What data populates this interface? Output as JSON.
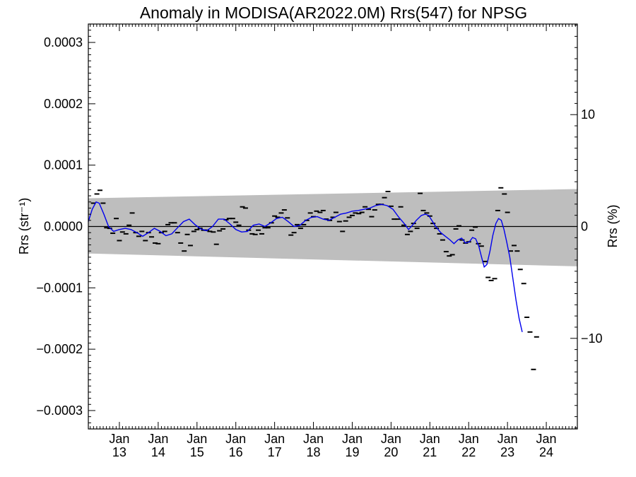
{
  "chart_data": {
    "type": "line",
    "title": "Anomaly in MODISA(AR2022.0M) Rrs(547) for NPSG",
    "ylabel_left": "Rrs (str⁻¹)",
    "ylabel_right": "Rrs (%)",
    "xlabel": "",
    "grid": false,
    "legend": "none",
    "xlim": [
      2012.2,
      2024.8
    ],
    "ylim": [
      -0.00033,
      0.00033
    ],
    "ylim_right": [
      -18.1,
      18.1
    ],
    "x_ticks": [
      {
        "month": "Jan",
        "year": "13",
        "x": 2013
      },
      {
        "month": "Jan",
        "year": "14",
        "x": 2014
      },
      {
        "month": "Jan",
        "year": "15",
        "x": 2015
      },
      {
        "month": "Jan",
        "year": "16",
        "x": 2016
      },
      {
        "month": "Jan",
        "year": "17",
        "x": 2017
      },
      {
        "month": "Jan",
        "year": "18",
        "x": 2018
      },
      {
        "month": "Jan",
        "year": "19",
        "x": 2019
      },
      {
        "month": "Jan",
        "year": "20",
        "x": 2020
      },
      {
        "month": "Jan",
        "year": "21",
        "x": 2021
      },
      {
        "month": "Jan",
        "year": "22",
        "x": 2022
      },
      {
        "month": "Jan",
        "year": "23",
        "x": 2023
      },
      {
        "month": "Jan",
        "year": "24",
        "x": 2024
      }
    ],
    "y_ticks_left": [
      {
        "label": "0.0003",
        "value": 0.0003
      },
      {
        "label": "0.0002",
        "value": 0.0002
      },
      {
        "label": "0.0001",
        "value": 0.0001
      },
      {
        "label": "0.0000",
        "value": 0.0
      },
      {
        "label": "−0.0001",
        "value": -0.0001
      },
      {
        "label": "−0.0002",
        "value": -0.0002
      },
      {
        "label": "−0.0003",
        "value": -0.0003
      }
    ],
    "y_ticks_right": [
      {
        "label": "10",
        "value": 10
      },
      {
        "label": "0",
        "value": 0
      },
      {
        "label": "−10",
        "value": -10
      }
    ],
    "band": {
      "color": "#bebebe",
      "upper": [
        [
          2012.2,
          4.6e-05
        ],
        [
          2024.8,
          6.1e-05
        ]
      ],
      "lower": [
        [
          2012.2,
          -4.4e-05
        ],
        [
          2024.8,
          -6.5e-05
        ]
      ]
    },
    "zero_line_color": "#000000",
    "series": [
      {
        "style": "markers",
        "color": "#000000",
        "points": [
          [
            2012.33,
            3.8e-05
          ],
          [
            2012.42,
            5.3e-05
          ],
          [
            2012.5,
            5.9e-05
          ],
          [
            2012.58,
            3.8e-05
          ],
          [
            2012.67,
            -2e-06
          ],
          [
            2012.75,
            -3e-06
          ],
          [
            2012.83,
            -1.1e-05
          ],
          [
            2012.92,
            1.3e-05
          ],
          [
            2013.0,
            -2.3e-05
          ],
          [
            2013.08,
            -9e-06
          ],
          [
            2013.17,
            -1.2e-05
          ],
          [
            2013.25,
            2e-06
          ],
          [
            2013.33,
            2.2e-05
          ],
          [
            2013.42,
            -1e-05
          ],
          [
            2013.5,
            -1.6e-05
          ],
          [
            2013.58,
            -8e-06
          ],
          [
            2013.67,
            -2.3e-05
          ],
          [
            2013.75,
            -1e-05
          ],
          [
            2013.83,
            -1.7e-05
          ],
          [
            2013.92,
            -2.7e-05
          ],
          [
            2014.0,
            -2.8e-05
          ],
          [
            2014.08,
            -1e-05
          ],
          [
            2014.17,
            -8e-06
          ],
          [
            2014.25,
            3e-06
          ],
          [
            2014.33,
            6e-06
          ],
          [
            2014.42,
            6e-06
          ],
          [
            2014.5,
            -1e-05
          ],
          [
            2014.58,
            -2.7e-05
          ],
          [
            2014.67,
            -4e-05
          ],
          [
            2014.75,
            -1.3e-05
          ],
          [
            2014.83,
            -3.1e-05
          ],
          [
            2014.92,
            -8e-06
          ],
          [
            2015.0,
            -5e-06
          ],
          [
            2015.08,
            -3e-06
          ],
          [
            2015.17,
            -6e-06
          ],
          [
            2015.25,
            -6e-06
          ],
          [
            2015.33,
            -8e-06
          ],
          [
            2015.42,
            -9e-06
          ],
          [
            2015.5,
            -2.9e-05
          ],
          [
            2015.58,
            -7e-06
          ],
          [
            2015.67,
            -4e-06
          ],
          [
            2015.75,
            1.1e-05
          ],
          [
            2015.83,
            1.3e-05
          ],
          [
            2015.92,
            1.3e-05
          ],
          [
            2016.0,
            7e-06
          ],
          [
            2016.08,
            2e-06
          ],
          [
            2016.17,
            3.2e-05
          ],
          [
            2016.25,
            3e-05
          ],
          [
            2016.33,
            -6e-06
          ],
          [
            2016.42,
            -1.2e-05
          ],
          [
            2016.5,
            -1.3e-05
          ],
          [
            2016.58,
            -6e-06
          ],
          [
            2016.67,
            -1.2e-05
          ],
          [
            2016.75,
            -2e-06
          ],
          [
            2016.83,
            -2e-06
          ],
          [
            2016.92,
            6e-06
          ],
          [
            2017.0,
            1.7e-05
          ],
          [
            2017.08,
            1.5e-05
          ],
          [
            2017.17,
            2.2e-05
          ],
          [
            2017.25,
            2.7e-05
          ],
          [
            2017.33,
            1.4e-05
          ],
          [
            2017.42,
            -1.4e-05
          ],
          [
            2017.5,
            -1e-05
          ],
          [
            2017.58,
            3e-06
          ],
          [
            2017.67,
            -3e-06
          ],
          [
            2017.75,
            3e-06
          ],
          [
            2017.83,
            1e-05
          ],
          [
            2017.92,
            2.2e-05
          ],
          [
            2018.0,
            1.6e-05
          ],
          [
            2018.08,
            2.5e-05
          ],
          [
            2018.17,
            2.3e-05
          ],
          [
            2018.25,
            2.6e-05
          ],
          [
            2018.33,
            1.2e-05
          ],
          [
            2018.42,
            1e-05
          ],
          [
            2018.5,
            1.5e-05
          ],
          [
            2018.58,
            2.3e-05
          ],
          [
            2018.67,
            8e-06
          ],
          [
            2018.75,
            -8e-06
          ],
          [
            2018.83,
            9e-06
          ],
          [
            2018.92,
            1.5e-05
          ],
          [
            2019.0,
            1.8e-05
          ],
          [
            2019.08,
            2.2e-05
          ],
          [
            2019.17,
            2.1e-05
          ],
          [
            2019.25,
            2.3e-05
          ],
          [
            2019.33,
            3.2e-05
          ],
          [
            2019.42,
            2.8e-05
          ],
          [
            2019.5,
            1.6e-05
          ],
          [
            2019.58,
            2.7e-05
          ],
          [
            2019.67,
            3.6e-05
          ],
          [
            2019.75,
            3.6e-05
          ],
          [
            2019.83,
            4.7e-05
          ],
          [
            2019.92,
            5.7e-05
          ],
          [
            2020.0,
            3.3e-05
          ],
          [
            2020.08,
            1.2e-05
          ],
          [
            2020.17,
            1.2e-05
          ],
          [
            2020.25,
            3.2e-05
          ],
          [
            2020.33,
            2e-06
          ],
          [
            2020.42,
            -1.3e-05
          ],
          [
            2020.5,
            -8e-06
          ],
          [
            2020.58,
            5e-06
          ],
          [
            2020.67,
            -3e-06
          ],
          [
            2020.75,
            5.4e-05
          ],
          [
            2020.83,
            2.6e-05
          ],
          [
            2020.92,
            2.2e-05
          ],
          [
            2021.0,
            1.7e-05
          ],
          [
            2021.08,
            5e-06
          ],
          [
            2021.17,
            -3e-06
          ],
          [
            2021.25,
            -1.2e-05
          ],
          [
            2021.33,
            -2.2e-05
          ],
          [
            2021.42,
            -4.1e-05
          ],
          [
            2021.5,
            -4.8e-05
          ],
          [
            2021.58,
            -4.6e-05
          ],
          [
            2021.67,
            -4e-06
          ],
          [
            2021.75,
            1e-06
          ],
          [
            2021.83,
            -2.2e-05
          ],
          [
            2021.92,
            -2.7e-05
          ],
          [
            2022.0,
            -2.5e-05
          ],
          [
            2022.08,
            -6e-06
          ],
          [
            2022.17,
            -1e-06
          ],
          [
            2022.25,
            -2.8e-05
          ],
          [
            2022.33,
            -3.2e-05
          ],
          [
            2022.42,
            -5.7e-05
          ],
          [
            2022.5,
            -8.3e-05
          ],
          [
            2022.58,
            -8.8e-05
          ],
          [
            2022.67,
            -8.5e-05
          ],
          [
            2022.75,
            2.6e-05
          ],
          [
            2022.83,
            6.3e-05
          ],
          [
            2022.92,
            5.3e-05
          ],
          [
            2023.0,
            2.3e-05
          ],
          [
            2023.08,
            -4e-05
          ],
          [
            2023.17,
            -3.1e-05
          ],
          [
            2023.25,
            -4e-05
          ],
          [
            2023.33,
            -7e-05
          ],
          [
            2023.42,
            -9.3e-05
          ],
          [
            2023.5,
            -0.000148
          ],
          [
            2023.58,
            -0.000172
          ],
          [
            2023.67,
            -0.000233
          ],
          [
            2023.75,
            -0.00018
          ]
        ]
      },
      {
        "style": "line",
        "color": "#0000ee",
        "points": [
          [
            2012.2,
            8e-06
          ],
          [
            2012.3,
            2.8e-05
          ],
          [
            2012.4,
            4e-05
          ],
          [
            2012.48,
            3.8e-05
          ],
          [
            2012.6,
            2e-05
          ],
          [
            2012.72,
            0.0
          ],
          [
            2012.85,
            -8e-06
          ],
          [
            2013.0,
            -5e-06
          ],
          [
            2013.15,
            -3e-06
          ],
          [
            2013.3,
            -5e-06
          ],
          [
            2013.45,
            -1e-05
          ],
          [
            2013.6,
            -1.6e-05
          ],
          [
            2013.75,
            -1e-05
          ],
          [
            2013.9,
            -3e-06
          ],
          [
            2014.05,
            -8e-06
          ],
          [
            2014.2,
            -1.5e-05
          ],
          [
            2014.35,
            -1.2e-05
          ],
          [
            2014.5,
            -2e-06
          ],
          [
            2014.65,
            8e-06
          ],
          [
            2014.8,
            1.2e-05
          ],
          [
            2014.95,
            3e-06
          ],
          [
            2015.1,
            -4e-06
          ],
          [
            2015.25,
            -7e-06
          ],
          [
            2015.4,
            0.0
          ],
          [
            2015.55,
            1.2e-05
          ],
          [
            2015.7,
            1.2e-05
          ],
          [
            2015.85,
            4e-06
          ],
          [
            2016.0,
            -5e-06
          ],
          [
            2016.15,
            -9e-06
          ],
          [
            2016.3,
            -8e-06
          ],
          [
            2016.45,
            2e-06
          ],
          [
            2016.6,
            4e-06
          ],
          [
            2016.75,
            0.0
          ],
          [
            2016.9,
            6e-06
          ],
          [
            2017.05,
            1.3e-05
          ],
          [
            2017.2,
            1.5e-05
          ],
          [
            2017.35,
            8e-06
          ],
          [
            2017.5,
            0.0
          ],
          [
            2017.65,
            2e-06
          ],
          [
            2017.8,
            1e-05
          ],
          [
            2017.95,
            1.5e-05
          ],
          [
            2018.1,
            1.6e-05
          ],
          [
            2018.25,
            1.2e-05
          ],
          [
            2018.4,
            1e-05
          ],
          [
            2018.55,
            1.5e-05
          ],
          [
            2018.7,
            2e-05
          ],
          [
            2018.85,
            2.2e-05
          ],
          [
            2019.0,
            2.5e-05
          ],
          [
            2019.15,
            2.6e-05
          ],
          [
            2019.3,
            2.8e-05
          ],
          [
            2019.45,
            3e-05
          ],
          [
            2019.6,
            3.4e-05
          ],
          [
            2019.75,
            3.6e-05
          ],
          [
            2019.9,
            3.4e-05
          ],
          [
            2020.05,
            2.8e-05
          ],
          [
            2020.2,
            1.5e-05
          ],
          [
            2020.35,
            4e-06
          ],
          [
            2020.45,
            -5e-06
          ],
          [
            2020.55,
            2e-06
          ],
          [
            2020.65,
            1e-05
          ],
          [
            2020.78,
            1.8e-05
          ],
          [
            2020.88,
            2e-05
          ],
          [
            2020.97,
            1.8e-05
          ],
          [
            2021.05,
            1e-05
          ],
          [
            2021.15,
            0.0
          ],
          [
            2021.28,
            -1e-05
          ],
          [
            2021.4,
            -1.6e-05
          ],
          [
            2021.52,
            -2.2e-05
          ],
          [
            2021.62,
            -2.8e-05
          ],
          [
            2021.72,
            -2.2e-05
          ],
          [
            2021.82,
            -1.9e-05
          ],
          [
            2021.92,
            -2.7e-05
          ],
          [
            2022.02,
            -2.5e-05
          ],
          [
            2022.1,
            -1.8e-05
          ],
          [
            2022.18,
            -2e-05
          ],
          [
            2022.26,
            -3.2e-05
          ],
          [
            2022.34,
            -5.2e-05
          ],
          [
            2022.4,
            -6.6e-05
          ],
          [
            2022.47,
            -6.2e-05
          ],
          [
            2022.55,
            -4e-05
          ],
          [
            2022.62,
            -1.5e-05
          ],
          [
            2022.7,
            5e-06
          ],
          [
            2022.77,
            1.3e-05
          ],
          [
            2022.84,
            1e-05
          ],
          [
            2022.91,
            -5e-06
          ],
          [
            2022.98,
            -2.5e-05
          ],
          [
            2023.06,
            -5e-05
          ],
          [
            2023.14,
            -8.5e-05
          ],
          [
            2023.22,
            -0.00012
          ],
          [
            2023.3,
            -0.00015
          ],
          [
            2023.38,
            -0.000172
          ]
        ]
      }
    ]
  }
}
